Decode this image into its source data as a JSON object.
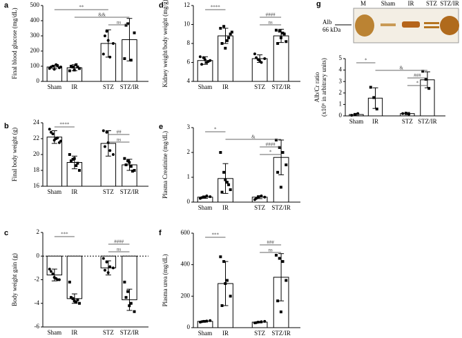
{
  "chart_data": [
    {
      "type": "bar",
      "panel": "a",
      "ylabel": "Final blood glucose (mg/dL)",
      "categories": [
        "Sham",
        "IR",
        "STZ",
        "STZ/IR"
      ],
      "values": [
        95,
        90,
        250,
        275
      ],
      "errors": [
        12,
        20,
        90,
        140
      ],
      "points": [
        [
          85,
          100,
          110,
          90,
          95,
          80,
          105,
          95
        ],
        [
          70,
          95,
          110,
          85,
          100,
          75,
          95
        ],
        [
          180,
          330,
          160,
          250,
          300,
          270
        ],
        [
          150,
          380,
          140,
          320,
          370
        ]
      ],
      "ylim": [
        0,
        500
      ],
      "yticks": [
        0,
        100,
        200,
        300,
        400,
        500
      ],
      "annotations": [
        {
          "label": "**",
          "between": [
            "Sham",
            "STZ"
          ]
        },
        {
          "label": "&&",
          "between": [
            "IR",
            "STZ/IR"
          ]
        },
        {
          "label": "ns",
          "between": [
            "STZ",
            "STZ/IR"
          ]
        }
      ]
    },
    {
      "type": "bar",
      "panel": "b",
      "ylabel": "Final body weight (g)",
      "categories": [
        "Sham",
        "IR",
        "STZ",
        "STZ/IR"
      ],
      "values": [
        22.2,
        19.0,
        21.4,
        18.7
      ],
      "errors": [
        0.8,
        0.8,
        1.6,
        0.7
      ],
      "points": [
        [
          23.2,
          22.6,
          22.0,
          21.5,
          22.8,
          21.8,
          22.1,
          21.7
        ],
        [
          20.0,
          19.4,
          18.6,
          18.0,
          19.2,
          19.5,
          18.9
        ],
        [
          23.0,
          22.8,
          20.5,
          20.0,
          21.0,
          21.5
        ],
        [
          19.5,
          19.2,
          18.5,
          18.0,
          18.7,
          19.0,
          17.9
        ]
      ],
      "ylim": [
        16,
        24
      ],
      "yticks": [
        16,
        18,
        20,
        22,
        24
      ],
      "annotations": [
        {
          "label": "****",
          "between": [
            "Sham",
            "IR"
          ]
        },
        {
          "label": "##",
          "between": [
            "STZ",
            "STZ/IR"
          ]
        },
        {
          "label": "ns",
          "between": [
            "STZ",
            "STZ/IR"
          ]
        }
      ]
    },
    {
      "type": "bar",
      "panel": "c",
      "ylabel": "Body weight gain (g)",
      "categories": [
        "Sham",
        "IR",
        "STZ",
        "STZ/IR"
      ],
      "values": [
        -1.6,
        -3.6,
        -1.0,
        -3.7
      ],
      "errors": [
        0.5,
        0.4,
        0.6,
        0.9
      ],
      "points": [
        [
          -1.1,
          -1.5,
          -1.9,
          -2.0,
          -1.3,
          -1.8,
          -2.0
        ],
        [
          -2.2,
          -3.6,
          -3.9,
          -4.0,
          -3.5,
          -3.8,
          -3.7
        ],
        [
          -0.2,
          -0.5,
          -0.9,
          -1.0,
          -1.2,
          -1.4
        ],
        [
          -2.2,
          -3.0,
          -4.0,
          -4.7,
          -3.5,
          -4.2
        ]
      ],
      "ylim": [
        -6,
        2
      ],
      "yticks": [
        -6,
        -4,
        -2,
        0,
        2
      ],
      "dashed_zero": true,
      "annotations": [
        {
          "label": "***",
          "between": [
            "Sham",
            "IR"
          ]
        },
        {
          "label": "####",
          "between": [
            "STZ",
            "STZ/IR"
          ]
        },
        {
          "label": "ns",
          "between": [
            "STZ",
            "STZ/IR"
          ]
        }
      ]
    },
    {
      "type": "bar",
      "panel": "d",
      "ylabel": "Kidney weight/body weight (mg/g)",
      "categories": [
        "Sham",
        "IR",
        "STZ",
        "STZ/IR"
      ],
      "values": [
        6.2,
        8.8,
        6.4,
        8.8
      ],
      "errors": [
        0.4,
        0.8,
        0.4,
        0.7
      ],
      "points": [
        [
          6.6,
          6.5,
          6.0,
          6.2,
          5.8,
          6.3,
          6.1
        ],
        [
          9.6,
          9.8,
          8.3,
          9.0,
          8.0,
          7.5,
          8.6,
          9.2
        ],
        [
          6.9,
          6.3,
          6.0,
          6.4,
          6.5,
          6.2
        ],
        [
          9.4,
          9.3,
          9.1,
          8.2,
          8.0,
          8.6,
          9.0
        ]
      ],
      "ylim": [
        4,
        12
      ],
      "yticks": [
        4,
        6,
        8,
        10,
        12
      ],
      "annotations": [
        {
          "label": "****",
          "between": [
            "Sham",
            "IR"
          ]
        },
        {
          "label": "####",
          "between": [
            "STZ",
            "STZ/IR"
          ]
        },
        {
          "label": "ns",
          "between": [
            "STZ",
            "STZ/IR"
          ]
        }
      ]
    },
    {
      "type": "bar",
      "panel": "e",
      "ylabel": "Plasma Creatinine (mg/dL)",
      "categories": [
        "Sham",
        "IR",
        "STZ",
        "STZ/IR"
      ],
      "values": [
        0.2,
        0.95,
        0.2,
        1.8
      ],
      "errors": [
        0.05,
        0.6,
        0.06,
        0.7
      ],
      "points": [
        [
          0.15,
          0.2,
          0.25,
          0.22,
          0.18,
          0.2
        ],
        [
          2.0,
          1.2,
          0.8,
          0.5,
          0.4,
          0.9,
          0.7
        ],
        [
          0.1,
          0.2,
          0.25,
          0.2,
          0.15
        ],
        [
          2.5,
          2.2,
          2.0,
          1.5,
          1.2,
          0.6
        ]
      ],
      "ylim": [
        0,
        3
      ],
      "yticks": [
        0,
        1,
        2,
        3
      ],
      "annotations": [
        {
          "label": "*",
          "between": [
            "Sham",
            "IR"
          ]
        },
        {
          "label": "&",
          "between": [
            "IR",
            "STZ/IR"
          ]
        },
        {
          "label": "####",
          "between": [
            "STZ",
            "STZ/IR"
          ]
        },
        {
          "label": "*",
          "between": [
            "STZ",
            "STZ/IR"
          ]
        }
      ]
    },
    {
      "type": "bar",
      "panel": "f",
      "ylabel": "Plasma urea (mg/dL)",
      "categories": [
        "Sham",
        "IR",
        "STZ",
        "STZ/IR"
      ],
      "values": [
        40,
        280,
        35,
        320
      ],
      "errors": [
        5,
        140,
        5,
        150
      ],
      "points": [
        [
          35,
          40,
          42,
          45,
          38,
          40
        ],
        [
          450,
          420,
          300,
          200,
          140,
          280
        ],
        [
          30,
          35,
          38,
          40,
          32
        ],
        [
          460,
          440,
          420,
          300,
          170,
          100
        ]
      ],
      "ylim": [
        0,
        600
      ],
      "yticks": [
        0,
        200,
        400,
        600
      ],
      "annotations": [
        {
          "label": "***",
          "between": [
            "Sham",
            "IR"
          ]
        },
        {
          "label": "###",
          "between": [
            "STZ",
            "STZ/IR"
          ]
        },
        {
          "label": "ns",
          "between": [
            "STZ",
            "STZ/IR"
          ]
        }
      ]
    },
    {
      "type": "bar",
      "panel": "g",
      "ylabel": "Alb/Cr ratio",
      "ylabel2": "(x10⁶ in arbitrary units)",
      "categories": [
        "Sham",
        "IR",
        "STZ",
        "STZ/IR"
      ],
      "values": [
        0.12,
        1.55,
        0.2,
        3.15
      ],
      "errors": [
        0.1,
        0.9,
        0.1,
        0.7
      ],
      "points": [
        [
          0.05,
          0.1,
          0.2
        ],
        [
          2.5,
          1.6,
          0.6
        ],
        [
          0.2,
          0.25,
          0.15
        ],
        [
          3.9,
          3.2,
          2.4
        ]
      ],
      "ylim": [
        0,
        5
      ],
      "yticks": [
        0,
        1,
        2,
        3,
        4,
        5
      ],
      "annotations": [
        {
          "label": "*",
          "between": [
            "Sham",
            "IR"
          ]
        },
        {
          "label": "&",
          "between": [
            "IR",
            "STZ/IR"
          ]
        },
        {
          "label": "###",
          "between": [
            "STZ",
            "STZ/IR"
          ]
        },
        {
          "label": "*",
          "between": [
            "STZ",
            "STZ/IR"
          ]
        }
      ],
      "gel": {
        "lanes": [
          "M",
          "Sham",
          "IR",
          "STZ",
          "STZ/IR"
        ],
        "band": "Alb",
        "size": "66 kDa"
      }
    }
  ]
}
